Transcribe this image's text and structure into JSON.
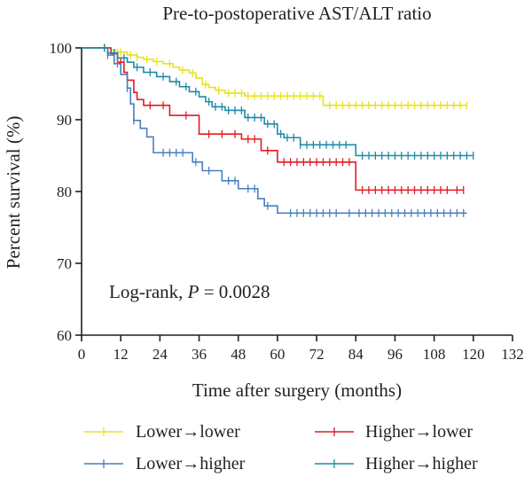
{
  "chart_data": {
    "type": "line",
    "subtype": "kaplan-meier",
    "title": "Pre-to-postoperative AST/ALT ratio",
    "xlabel": "Time after surgery (months)",
    "ylabel": "Percent survival (%)",
    "xlim": [
      0,
      132
    ],
    "ylim": [
      60,
      100
    ],
    "xticks": [
      0,
      12,
      24,
      36,
      48,
      60,
      72,
      84,
      96,
      108,
      120,
      132
    ],
    "yticks": [
      60,
      70,
      80,
      90,
      100
    ],
    "grid": false,
    "legend_position": "bottom",
    "annotation": {
      "prefix": "Log-rank, ",
      "variable": "P",
      "suffix": " = 0.0028"
    },
    "series": [
      {
        "name": "Lower→lower",
        "color": "#e8e21f",
        "steps": [
          [
            0,
            100
          ],
          [
            6,
            100
          ],
          [
            9,
            99.7
          ],
          [
            11,
            99.4
          ],
          [
            14,
            99.0
          ],
          [
            17,
            98.7
          ],
          [
            19,
            98.4
          ],
          [
            22,
            98.1
          ],
          [
            25,
            97.8
          ],
          [
            28,
            97.3
          ],
          [
            30,
            96.9
          ],
          [
            33,
            96.5
          ],
          [
            35,
            95.8
          ],
          [
            37,
            94.9
          ],
          [
            39,
            94.5
          ],
          [
            41,
            94.1
          ],
          [
            44,
            93.7
          ],
          [
            50,
            93.3
          ],
          [
            63,
            93.3
          ],
          [
            74,
            92.0
          ],
          [
            118,
            92.0
          ]
        ],
        "censored": [
          7,
          12,
          15,
          17,
          20,
          23,
          27,
          31,
          34,
          38,
          42,
          45,
          47,
          49,
          51,
          53,
          55,
          57,
          59,
          61,
          63,
          65,
          67,
          69,
          71,
          73,
          76,
          78,
          80,
          82,
          84,
          86,
          88,
          90,
          92,
          94,
          96,
          98,
          100,
          102,
          104,
          106,
          108,
          110,
          112,
          114,
          116,
          118
        ]
      },
      {
        "name": "Higher→lower",
        "color": "#e31b23",
        "steps": [
          [
            0,
            100
          ],
          [
            6,
            100
          ],
          [
            9,
            99.2
          ],
          [
            11,
            98.0
          ],
          [
            13,
            96.6
          ],
          [
            14,
            95.5
          ],
          [
            16,
            93.8
          ],
          [
            17,
            92.8
          ],
          [
            19,
            92.0
          ],
          [
            27,
            90.6
          ],
          [
            36,
            88.0
          ],
          [
            49,
            87.3
          ],
          [
            55,
            85.7
          ],
          [
            60,
            84.1
          ],
          [
            83,
            84.1
          ],
          [
            84,
            80.2
          ],
          [
            117,
            80.2
          ]
        ],
        "censored": [
          7,
          10,
          12,
          21,
          25,
          32,
          39,
          43,
          47,
          51,
          53,
          57,
          62,
          64,
          66,
          68,
          70,
          72,
          74,
          76,
          78,
          80,
          82,
          86,
          88,
          90,
          92,
          94,
          96,
          98,
          100,
          102,
          104,
          106,
          108,
          110,
          112,
          115,
          117
        ]
      },
      {
        "name": "Lower→higher",
        "color": "#4a7fc1",
        "steps": [
          [
            0,
            100
          ],
          [
            6,
            100
          ],
          [
            8,
            99.0
          ],
          [
            10,
            97.8
          ],
          [
            12,
            96.3
          ],
          [
            14,
            94.4
          ],
          [
            15,
            92.2
          ],
          [
            16,
            89.9
          ],
          [
            18,
            88.8
          ],
          [
            20,
            87.6
          ],
          [
            22,
            85.4
          ],
          [
            34,
            84.1
          ],
          [
            37,
            82.9
          ],
          [
            41,
            82.9
          ],
          [
            43,
            81.5
          ],
          [
            48,
            80.4
          ],
          [
            54,
            79.0
          ],
          [
            56,
            78.0
          ],
          [
            60,
            77.0
          ],
          [
            118,
            77.0
          ]
        ],
        "censored": [
          8,
          11,
          14,
          16,
          25,
          27,
          29,
          31,
          35,
          39,
          45,
          47,
          51,
          53,
          57,
          64,
          66,
          68,
          70,
          72,
          74,
          76,
          78,
          82,
          85,
          87,
          89,
          91,
          93,
          95,
          97,
          99,
          101,
          103,
          105,
          107,
          109,
          111,
          113,
          115,
          117
        ]
      },
      {
        "name": "Higher→higher",
        "color": "#1f8aa8",
        "steps": [
          [
            0,
            100
          ],
          [
            6,
            100
          ],
          [
            8,
            99.3
          ],
          [
            11,
            98.6
          ],
          [
            14,
            98.0
          ],
          [
            16,
            97.3
          ],
          [
            19,
            96.6
          ],
          [
            23,
            96.0
          ],
          [
            27,
            95.3
          ],
          [
            30,
            94.6
          ],
          [
            33,
            93.9
          ],
          [
            36,
            93.2
          ],
          [
            38,
            92.5
          ],
          [
            40,
            91.8
          ],
          [
            44,
            91.3
          ],
          [
            50,
            90.3
          ],
          [
            56,
            89.4
          ],
          [
            60,
            88.0
          ],
          [
            62,
            87.5
          ],
          [
            67,
            86.5
          ],
          [
            82,
            86.5
          ],
          [
            84,
            85.0
          ],
          [
            120,
            85.0
          ]
        ],
        "censored": [
          7,
          10,
          13,
          17,
          21,
          25,
          29,
          32,
          35,
          39,
          41,
          43,
          45,
          47,
          49,
          51,
          53,
          55,
          57,
          59,
          61,
          63,
          65,
          67,
          69,
          71,
          73,
          75,
          77,
          79,
          81,
          86,
          88,
          90,
          92,
          94,
          96,
          98,
          100,
          102,
          104,
          106,
          108,
          110,
          112,
          114,
          116,
          118,
          120
        ]
      }
    ]
  }
}
